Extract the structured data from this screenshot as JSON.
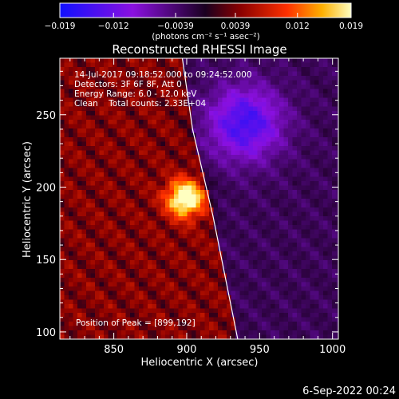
{
  "chart_data": {
    "type": "heatmap",
    "title": "Reconstructed RHESSI Image",
    "xlabel": "Heliocentric X (arcsec)",
    "ylabel": "Heliocentric Y (arcsec)",
    "xlim": [
      813,
      1004
    ],
    "ylim": [
      95,
      289
    ],
    "xticks": [
      850,
      900,
      950,
      1000
    ],
    "yticks": [
      100,
      150,
      200,
      250
    ],
    "colorbar": {
      "min": -0.019,
      "max": 0.019,
      "tick_labels": [
        "−0.019",
        "−0.012",
        "−0.0039",
        "0.0039",
        "0.012",
        "0.019"
      ],
      "tick_values": [
        -0.019,
        -0.012,
        -0.0039,
        0.0039,
        0.012,
        0.019
      ],
      "units": "(photons cm⁻² s⁻¹ asec⁻²)"
    },
    "annotations": [
      "14-Jul-2017 09:18:52.000 to 09:24:52.000",
      "Detectors: 3F 6F 8F, Att 0",
      "Energy Range: 6.0 - 12.0 keV",
      "Clean    Total counts: 2.33E+04"
    ],
    "peak_label": "Position of Peak = [899,192]",
    "peak": [
      899,
      192
    ],
    "sources": [
      {
        "x": 899,
        "y": 192,
        "amplitude": 0.019,
        "width": 9
      },
      {
        "x": 940,
        "y": 244,
        "amplitude": -0.012,
        "width": 18
      }
    ],
    "limb_arc": [
      [
        935,
        95
      ],
      [
        918,
        180
      ],
      [
        904,
        240
      ],
      [
        897,
        289
      ]
    ]
  },
  "footer_date": "6-Sep-2022 00:24"
}
